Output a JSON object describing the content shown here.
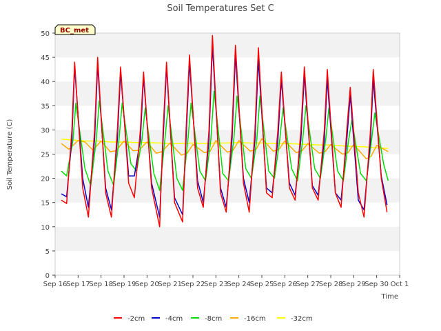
{
  "chart_data": {
    "type": "line",
    "title": "Soil Temperatures Set C",
    "xlabel": "Time",
    "ylabel": "Soil Temperature (C)",
    "site_label": "BC_met",
    "xlim": [
      0,
      15
    ],
    "ylim": [
      0,
      50
    ],
    "yticks": [
      0,
      5,
      10,
      15,
      20,
      25,
      30,
      35,
      40,
      45,
      50
    ],
    "xticks": [
      {
        "v": 0,
        "label": "Sep 16"
      },
      {
        "v": 1,
        "label": "Sep 17"
      },
      {
        "v": 2,
        "label": "Sep 18"
      },
      {
        "v": 3,
        "label": "Sep 19"
      },
      {
        "v": 4,
        "label": "Sep 20"
      },
      {
        "v": 5,
        "label": "Sep 21"
      },
      {
        "v": 6,
        "label": "Sep 22"
      },
      {
        "v": 7,
        "label": "Sep 23"
      },
      {
        "v": 8,
        "label": "Sep 24"
      },
      {
        "v": 9,
        "label": "Sep 25"
      },
      {
        "v": 10,
        "label": "Sep 26"
      },
      {
        "v": 11,
        "label": "Sep 27"
      },
      {
        "v": 12,
        "label": "Sep 28"
      },
      {
        "v": 13,
        "label": "Sep 29"
      },
      {
        "v": 14,
        "label": "Sep 30"
      },
      {
        "v": 15,
        "label": "Oct 1"
      }
    ],
    "legend_position": "bottom",
    "grid": "alternating horizontal bands",
    "series": [
      {
        "name": "-2cm",
        "color": "#ff0000",
        "x": [
          0.27,
          0.5,
          0.73,
          0.85,
          1.2,
          1.45,
          1.72,
          1.85,
          2.2,
          2.45,
          2.71,
          2.85,
          3.2,
          3.45,
          3.71,
          3.85,
          4.2,
          4.55,
          4.7,
          4.85,
          5.2,
          5.55,
          5.7,
          5.85,
          6.2,
          6.45,
          6.7,
          6.85,
          7.2,
          7.45,
          7.7,
          7.85,
          8.2,
          8.45,
          8.7,
          8.85,
          9.2,
          9.45,
          9.7,
          9.85,
          10.2,
          10.45,
          10.7,
          10.85,
          11.2,
          11.45,
          11.72,
          11.85,
          12.2,
          12.45,
          12.7,
          12.85,
          13.2,
          13.45,
          13.73,
          13.85,
          14.2,
          14.45
        ],
        "y": [
          15.5,
          14.8,
          30,
          44,
          18,
          12,
          30,
          45,
          17,
          12,
          30,
          43,
          19,
          16,
          30,
          42,
          18,
          10,
          30,
          44,
          15,
          11,
          30,
          45.5,
          18,
          14,
          30,
          49.5,
          17,
          13,
          30,
          47.5,
          19,
          13,
          30,
          47,
          17,
          16,
          30,
          42,
          18,
          15.5,
          30,
          43,
          18,
          15.5,
          30,
          42.5,
          17,
          14,
          30,
          38.8,
          17,
          12,
          30,
          42.5,
          20,
          13
        ]
      },
      {
        "name": "-4cm",
        "color": "#0000cc",
        "x": [
          0.27,
          0.5,
          0.73,
          0.85,
          1.2,
          1.45,
          1.72,
          1.85,
          2.2,
          2.45,
          2.71,
          2.85,
          3.2,
          3.45,
          3.71,
          3.85,
          4.2,
          4.55,
          4.7,
          4.85,
          5.2,
          5.55,
          5.7,
          5.85,
          6.2,
          6.45,
          6.7,
          6.85,
          7.2,
          7.45,
          7.7,
          7.85,
          8.2,
          8.45,
          8.7,
          8.85,
          9.2,
          9.45,
          9.7,
          9.85,
          10.2,
          10.45,
          10.7,
          10.85,
          11.2,
          11.45,
          11.72,
          11.85,
          12.2,
          12.45,
          12.7,
          12.85,
          13.2,
          13.45,
          13.73,
          13.85,
          14.2,
          14.45
        ],
        "y": [
          16.8,
          16.2,
          28,
          43,
          20,
          14,
          28,
          43.5,
          18,
          13.5,
          28,
          42,
          20.5,
          20.5,
          28,
          41,
          19,
          12,
          28,
          43,
          16,
          12.5,
          28,
          44,
          19.5,
          15,
          28,
          47.5,
          18,
          14,
          28,
          45.5,
          20,
          15,
          28,
          44.5,
          18,
          17,
          28,
          40.5,
          19,
          16.5,
          28,
          41.5,
          18.5,
          16.5,
          28,
          40.5,
          17,
          15.5,
          28,
          37.2,
          15.5,
          13.5,
          28,
          40.5,
          20.5,
          14.5
        ]
      },
      {
        "name": "-8cm",
        "color": "#00dd00",
        "x": [
          0.27,
          0.5,
          0.78,
          0.9,
          1.3,
          1.55,
          1.79,
          1.92,
          2.3,
          2.55,
          2.78,
          2.92,
          3.3,
          3.55,
          3.78,
          3.92,
          4.3,
          4.55,
          4.78,
          4.92,
          5.3,
          5.55,
          5.78,
          5.92,
          6.3,
          6.55,
          6.78,
          6.92,
          7.3,
          7.55,
          7.78,
          7.92,
          8.3,
          8.55,
          8.78,
          8.92,
          9.3,
          9.55,
          9.78,
          9.92,
          10.3,
          10.55,
          10.78,
          10.92,
          11.3,
          11.55,
          11.78,
          11.92,
          12.3,
          12.55,
          12.78,
          12.92,
          13.3,
          13.55,
          13.78,
          13.92,
          14.3,
          14.5
        ],
        "y": [
          21.5,
          20.5,
          28,
          35.5,
          22,
          18.5,
          28,
          36,
          21.5,
          18.5,
          28,
          35.5,
          23,
          21.5,
          28,
          34.5,
          21,
          17.5,
          28,
          35,
          20,
          17.5,
          28,
          35.5,
          21.5,
          19.5,
          28,
          38,
          21,
          19.5,
          28,
          37,
          22,
          20,
          28,
          37,
          21.5,
          20,
          28,
          34.5,
          22,
          19.5,
          28,
          35,
          22,
          20,
          28,
          34.5,
          21.5,
          19.5,
          28,
          32,
          21,
          19.5,
          28,
          33.5,
          23,
          19.5
        ]
      },
      {
        "name": "-16cm",
        "color": "#ffaa00",
        "x": [
          0.27,
          0.6,
          1.0,
          1.3,
          1.65,
          2.0,
          2.4,
          2.65,
          3.0,
          3.4,
          3.65,
          4.0,
          4.4,
          4.65,
          5.0,
          5.5,
          5.75,
          6.0,
          6.5,
          6.75,
          7.0,
          7.5,
          7.75,
          8.0,
          8.5,
          8.75,
          9.0,
          9.5,
          9.75,
          10.0,
          10.5,
          10.75,
          11.0,
          11.5,
          11.75,
          12.0,
          12.5,
          12.75,
          13.0,
          13.55,
          13.75,
          14.0,
          14.4,
          14.5
        ],
        "y": [
          27.2,
          26,
          27.8,
          27.5,
          25.8,
          27.7,
          25.5,
          25.7,
          27.7,
          25.7,
          25.8,
          27.5,
          25.2,
          25.5,
          27.3,
          24.8,
          25.2,
          27.0,
          25.3,
          25.6,
          27.8,
          25.4,
          25.8,
          27.8,
          25.6,
          26.0,
          28.2,
          25.6,
          26.0,
          27.7,
          25.3,
          25.7,
          27.2,
          25.2,
          25.5,
          27.0,
          25.0,
          25.3,
          27.0,
          24.0,
          24.5,
          26.8,
          25.8,
          25.5
        ]
      },
      {
        "name": "-32cm",
        "color": "#ffff00",
        "x": [
          0.27,
          0.8,
          1.3,
          1.9,
          2.4,
          3.0,
          3.5,
          4.0,
          4.5,
          5.0,
          5.5,
          6.0,
          6.5,
          7.0,
          7.5,
          8.0,
          8.5,
          9.0,
          9.5,
          10.0,
          10.5,
          11.0,
          11.5,
          12.0,
          12.5,
          13.0,
          13.5,
          14.0,
          14.5
        ],
        "y": [
          28.1,
          27.9,
          27.7,
          27.7,
          27.5,
          27.5,
          27.4,
          27.4,
          27.3,
          27.2,
          27.2,
          27.3,
          27.2,
          27.3,
          27.3,
          27.4,
          27.3,
          27.3,
          27.2,
          27.2,
          27.1,
          27.0,
          26.9,
          26.9,
          26.7,
          26.6,
          26.5,
          26.3,
          26.2
        ]
      }
    ]
  }
}
